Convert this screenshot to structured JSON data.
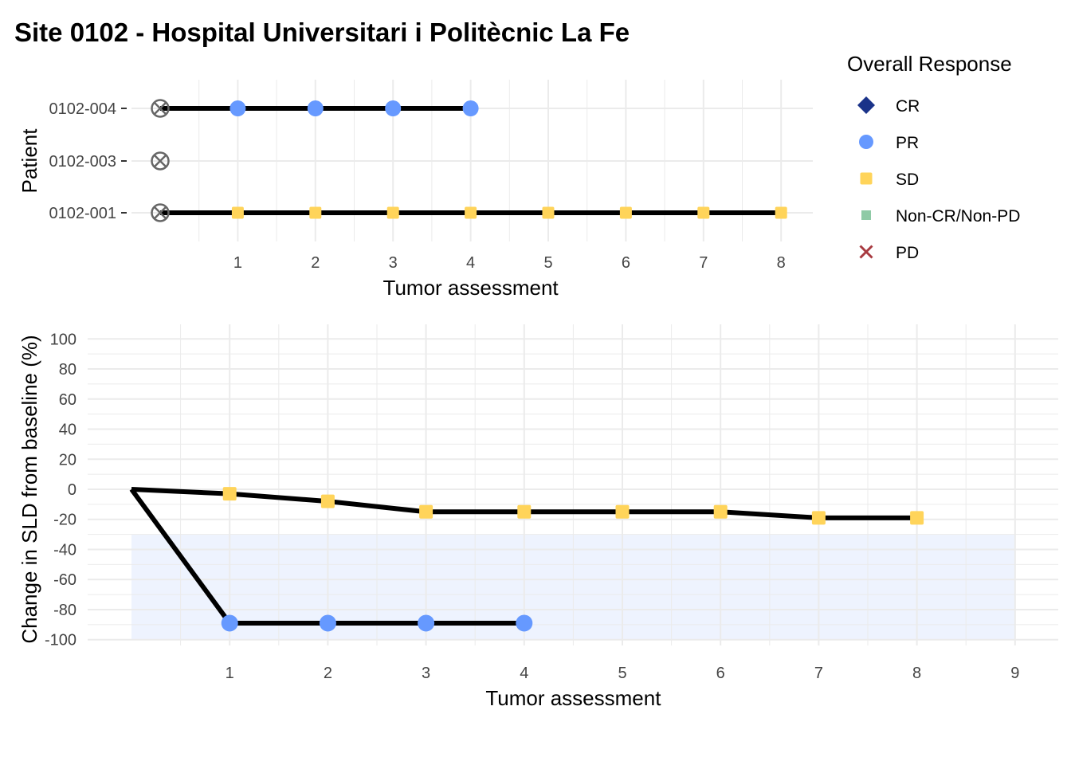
{
  "title": "Site 0102 - Hospital Universitari i Politècnic La Fe",
  "legend": {
    "title": "Overall Response",
    "items": [
      {
        "label": "CR",
        "color": "#1a3389",
        "shape": "diamond"
      },
      {
        "label": "PR",
        "color": "#6699ff",
        "shape": "circle"
      },
      {
        "label": "SD",
        "color": "#ffd45a",
        "shape": "square"
      },
      {
        "label": "Non-CR/Non-PD",
        "color": "#8fcaa6",
        "shape": "square-small"
      },
      {
        "label": "PD",
        "color": "#a83a40",
        "shape": "cross"
      }
    ]
  },
  "chart_data": [
    {
      "type": "line",
      "xlabel": "Tumor assessment",
      "ylabel": "Patient",
      "x_ticks": [
        1,
        2,
        3,
        4,
        5,
        6,
        7,
        8
      ],
      "xlim": [
        0,
        8
      ],
      "categories": [
        "0102-004",
        "0102-003",
        "0102-001"
      ],
      "baseline_marker": "circled-x",
      "series": [
        {
          "name": "0102-004",
          "x": [
            0,
            1,
            2,
            3,
            4
          ],
          "responses": [
            "",
            "PR",
            "PR",
            "PR",
            "PR"
          ]
        },
        {
          "name": "0102-003",
          "x": [
            0
          ],
          "responses": [
            ""
          ]
        },
        {
          "name": "0102-001",
          "x": [
            0,
            1,
            2,
            3,
            4,
            5,
            6,
            7,
            8
          ],
          "responses": [
            "",
            "SD",
            "SD",
            "SD",
            "SD",
            "SD",
            "SD",
            "SD",
            "SD"
          ]
        }
      ]
    },
    {
      "type": "line",
      "xlabel": "Tumor assessment",
      "ylabel": "Change in SLD from baseline (%)",
      "x_ticks": [
        1,
        2,
        3,
        4,
        5,
        6,
        7,
        8,
        9
      ],
      "xlim": [
        0,
        9
      ],
      "ylim": [
        -100,
        100
      ],
      "y_ticks": [
        100,
        80,
        60,
        40,
        20,
        0,
        -20,
        -40,
        -60,
        -80,
        -100
      ],
      "shaded_band": {
        "y_from": -100,
        "y_to": -30,
        "x_from": 0,
        "x_to": 9,
        "color": "#eef3fe"
      },
      "series": [
        {
          "x": [
            0,
            1,
            2,
            3,
            4,
            5,
            6,
            7,
            8
          ],
          "y": [
            0,
            -3,
            -8,
            -15,
            -15,
            -15,
            -15,
            -19,
            -19
          ],
          "responses": [
            "",
            "SD",
            "SD",
            "SD",
            "SD",
            "SD",
            "SD",
            "SD",
            "SD"
          ]
        },
        {
          "x": [
            0,
            1,
            2,
            3,
            4
          ],
          "y": [
            0,
            -89,
            -89,
            -89,
            -89
          ],
          "responses": [
            "",
            "PR",
            "PR",
            "PR",
            "PR"
          ]
        }
      ]
    }
  ]
}
